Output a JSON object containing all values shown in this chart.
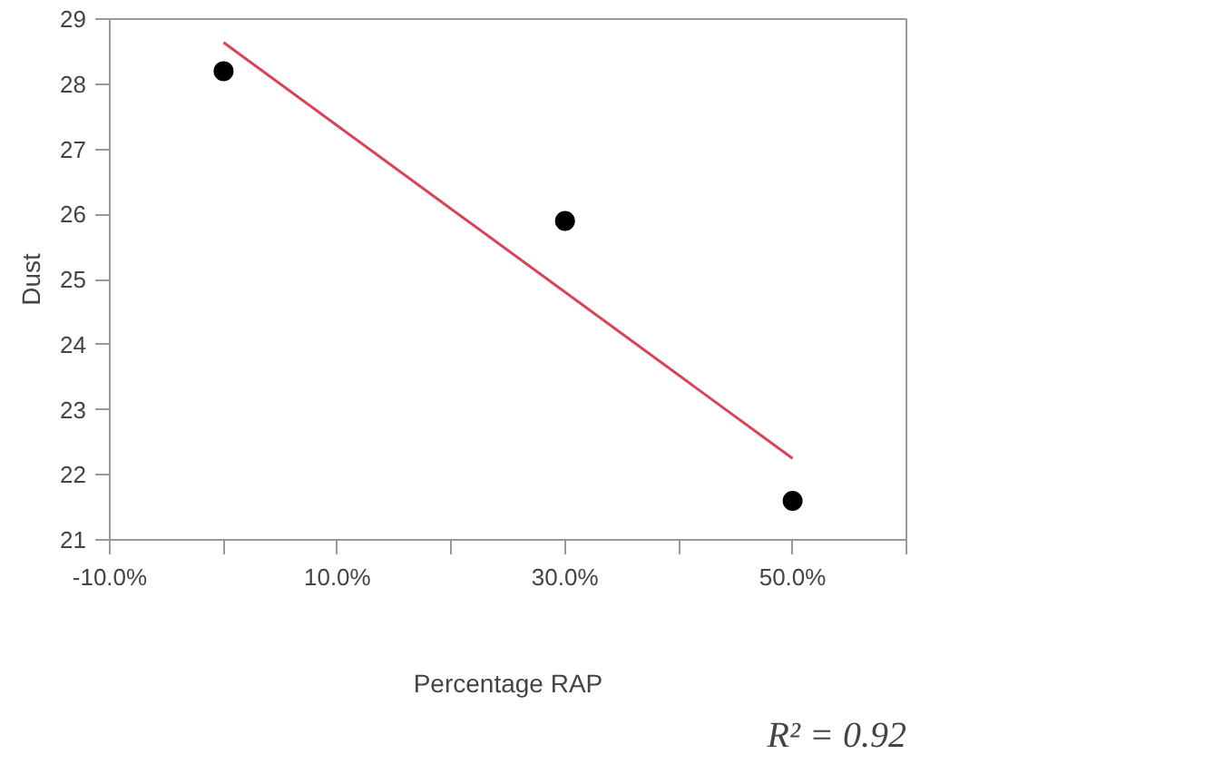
{
  "chart_data": {
    "type": "scatter",
    "xlabel": "Percentage RAP",
    "ylabel": "Dust",
    "x": [
      0,
      30,
      50
    ],
    "series": [
      {
        "color": "#000000",
        "marker": "circle",
        "values": [
          28.2,
          25.9,
          21.6
        ]
      },
      {
        "type": "line",
        "marker": "none",
        "color": "#d9435a",
        "x": [
          0,
          50
        ],
        "values": [
          28.64,
          22.25
        ]
      }
    ],
    "xlim": [
      -10,
      60
    ],
    "xticks": [
      {
        "value": -10,
        "label": "-10.0%"
      },
      {
        "value": 0,
        "label": null
      },
      {
        "value": 10,
        "label": "10.0%"
      },
      {
        "value": 20,
        "label": null
      },
      {
        "value": 30,
        "label": "30.0%"
      },
      {
        "value": 40,
        "label": null
      },
      {
        "value": 50,
        "label": "50.0%"
      },
      {
        "value": 60,
        "label": null
      }
    ],
    "ylim": [
      21,
      29
    ],
    "yticks": [
      21,
      22,
      23,
      24,
      25,
      26,
      27,
      28,
      29
    ],
    "grid": false,
    "annotations": [
      "R² = 0.92"
    ]
  }
}
